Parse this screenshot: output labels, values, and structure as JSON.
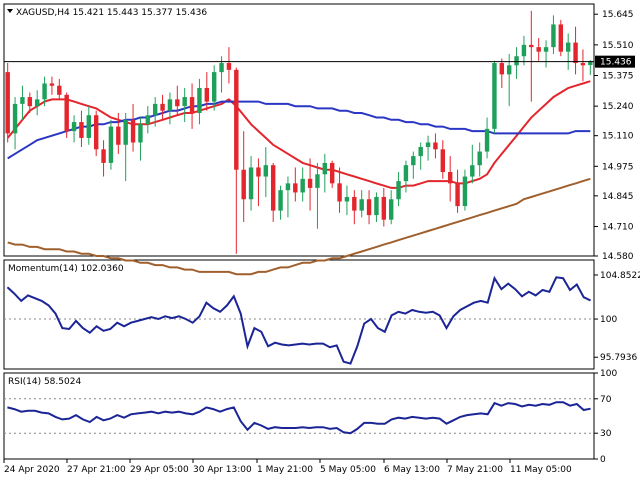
{
  "chart_data": [
    {
      "type": "candlestick",
      "title": "XAGUSD,H4  15.421 15.443 15.377 15.436",
      "symbol": "XAGUSD,H4",
      "ohlc_header": [
        "15.421",
        "15.443",
        "15.377",
        "15.436"
      ],
      "last_price_label": "15.436",
      "last_price": 15.436,
      "ylim": [
        14.58,
        15.69
      ],
      "y_ticks": [
        15.645,
        15.51,
        15.375,
        15.24,
        15.11,
        14.975,
        14.845,
        14.71,
        14.58
      ],
      "y_tick_labels": [
        "15.645",
        "15.510",
        "15.375",
        "15.240",
        "15.110",
        "14.975",
        "14.845",
        "14.710",
        "14.580"
      ],
      "bull_color": "#1fa05a",
      "bear_color": "#e3262d",
      "candles": [
        {
          "o": 15.39,
          "h": 15.43,
          "l": 15.08,
          "c": 15.12
        },
        {
          "o": 15.12,
          "h": 15.28,
          "l": 15.05,
          "c": 15.25
        },
        {
          "o": 15.25,
          "h": 15.33,
          "l": 15.18,
          "c": 15.28
        },
        {
          "o": 15.28,
          "h": 15.3,
          "l": 15.21,
          "c": 15.24
        },
        {
          "o": 15.24,
          "h": 15.31,
          "l": 15.2,
          "c": 15.27
        },
        {
          "o": 15.27,
          "h": 15.37,
          "l": 15.24,
          "c": 15.34
        },
        {
          "o": 15.34,
          "h": 15.37,
          "l": 15.29,
          "c": 15.33
        },
        {
          "o": 15.33,
          "h": 15.36,
          "l": 15.27,
          "c": 15.29
        },
        {
          "o": 15.29,
          "h": 15.3,
          "l": 15.1,
          "c": 15.13
        },
        {
          "o": 15.13,
          "h": 15.2,
          "l": 15.08,
          "c": 15.17
        },
        {
          "o": 15.17,
          "h": 15.22,
          "l": 15.06,
          "c": 15.1
        },
        {
          "o": 15.1,
          "h": 15.24,
          "l": 15.07,
          "c": 15.2
        },
        {
          "o": 15.2,
          "h": 15.22,
          "l": 15.02,
          "c": 15.05
        },
        {
          "o": 15.05,
          "h": 15.09,
          "l": 14.93,
          "c": 14.99
        },
        {
          "o": 14.99,
          "h": 15.18,
          "l": 14.96,
          "c": 15.15
        },
        {
          "o": 15.15,
          "h": 15.21,
          "l": 15.03,
          "c": 15.07
        },
        {
          "o": 15.07,
          "h": 15.21,
          "l": 14.91,
          "c": 15.18
        },
        {
          "o": 15.18,
          "h": 15.25,
          "l": 15.04,
          "c": 15.08
        },
        {
          "o": 15.08,
          "h": 15.19,
          "l": 15.0,
          "c": 15.16
        },
        {
          "o": 15.16,
          "h": 15.24,
          "l": 15.12,
          "c": 15.2
        },
        {
          "o": 15.2,
          "h": 15.28,
          "l": 15.15,
          "c": 15.25
        },
        {
          "o": 15.25,
          "h": 15.29,
          "l": 15.18,
          "c": 15.22
        },
        {
          "o": 15.22,
          "h": 15.3,
          "l": 15.16,
          "c": 15.27
        },
        {
          "o": 15.27,
          "h": 15.33,
          "l": 15.2,
          "c": 15.24
        },
        {
          "o": 15.24,
          "h": 15.32,
          "l": 15.17,
          "c": 15.28
        },
        {
          "o": 15.28,
          "h": 15.34,
          "l": 15.14,
          "c": 15.21
        },
        {
          "o": 15.21,
          "h": 15.36,
          "l": 15.16,
          "c": 15.32
        },
        {
          "o": 15.32,
          "h": 15.39,
          "l": 15.22,
          "c": 15.26
        },
        {
          "o": 15.26,
          "h": 15.42,
          "l": 15.22,
          "c": 15.39
        },
        {
          "o": 15.39,
          "h": 15.46,
          "l": 15.3,
          "c": 15.43
        },
        {
          "o": 15.43,
          "h": 15.5,
          "l": 15.34,
          "c": 15.4
        },
        {
          "o": 15.4,
          "h": 15.41,
          "l": 14.59,
          "c": 14.96
        },
        {
          "o": 14.96,
          "h": 15.13,
          "l": 14.73,
          "c": 14.83
        },
        {
          "o": 14.83,
          "h": 15.02,
          "l": 14.78,
          "c": 14.97
        },
        {
          "o": 14.97,
          "h": 15.01,
          "l": 14.8,
          "c": 14.93
        },
        {
          "o": 14.93,
          "h": 15.06,
          "l": 14.84,
          "c": 14.98
        },
        {
          "o": 14.98,
          "h": 14.99,
          "l": 14.73,
          "c": 14.78
        },
        {
          "o": 14.78,
          "h": 14.89,
          "l": 14.74,
          "c": 14.87
        },
        {
          "o": 14.87,
          "h": 14.93,
          "l": 14.75,
          "c": 14.9
        },
        {
          "o": 14.9,
          "h": 14.97,
          "l": 14.82,
          "c": 14.86
        },
        {
          "o": 14.86,
          "h": 14.97,
          "l": 14.82,
          "c": 14.92
        },
        {
          "o": 14.92,
          "h": 15.01,
          "l": 14.78,
          "c": 14.88
        },
        {
          "o": 14.88,
          "h": 14.99,
          "l": 14.7,
          "c": 14.94
        },
        {
          "o": 14.94,
          "h": 15.03,
          "l": 14.86,
          "c": 14.99
        },
        {
          "o": 14.99,
          "h": 15.0,
          "l": 14.88,
          "c": 14.9
        },
        {
          "o": 14.9,
          "h": 14.97,
          "l": 14.77,
          "c": 14.82
        },
        {
          "o": 14.82,
          "h": 14.89,
          "l": 14.76,
          "c": 14.84
        },
        {
          "o": 14.84,
          "h": 14.87,
          "l": 14.72,
          "c": 14.78
        },
        {
          "o": 14.78,
          "h": 14.87,
          "l": 14.75,
          "c": 14.83
        },
        {
          "o": 14.83,
          "h": 14.87,
          "l": 14.72,
          "c": 14.76
        },
        {
          "o": 14.76,
          "h": 14.86,
          "l": 14.73,
          "c": 14.84
        },
        {
          "o": 14.84,
          "h": 14.88,
          "l": 14.71,
          "c": 14.74
        },
        {
          "o": 14.74,
          "h": 14.87,
          "l": 14.72,
          "c": 14.83
        },
        {
          "o": 14.83,
          "h": 14.95,
          "l": 14.8,
          "c": 14.91
        },
        {
          "o": 14.91,
          "h": 15.0,
          "l": 14.86,
          "c": 14.98
        },
        {
          "o": 14.98,
          "h": 15.04,
          "l": 14.92,
          "c": 15.02
        },
        {
          "o": 15.02,
          "h": 15.08,
          "l": 14.96,
          "c": 15.06
        },
        {
          "o": 15.06,
          "h": 15.11,
          "l": 15.0,
          "c": 15.08
        },
        {
          "o": 15.08,
          "h": 15.12,
          "l": 15.01,
          "c": 15.05
        },
        {
          "o": 15.05,
          "h": 15.09,
          "l": 14.92,
          "c": 14.95
        },
        {
          "o": 14.95,
          "h": 15.02,
          "l": 14.82,
          "c": 14.9
        },
        {
          "o": 14.9,
          "h": 14.96,
          "l": 14.77,
          "c": 14.8
        },
        {
          "o": 14.8,
          "h": 14.96,
          "l": 14.78,
          "c": 14.93
        },
        {
          "o": 14.93,
          "h": 15.07,
          "l": 14.9,
          "c": 14.98
        },
        {
          "o": 14.98,
          "h": 15.08,
          "l": 14.93,
          "c": 15.04
        },
        {
          "o": 15.04,
          "h": 15.19,
          "l": 15.01,
          "c": 15.14
        },
        {
          "o": 15.14,
          "h": 15.44,
          "l": 15.12,
          "c": 15.43
        },
        {
          "o": 15.43,
          "h": 15.45,
          "l": 15.32,
          "c": 15.38
        },
        {
          "o": 15.38,
          "h": 15.47,
          "l": 15.24,
          "c": 15.42
        },
        {
          "o": 15.42,
          "h": 15.5,
          "l": 15.36,
          "c": 15.46
        },
        {
          "o": 15.46,
          "h": 15.55,
          "l": 15.42,
          "c": 15.51
        },
        {
          "o": 15.51,
          "h": 15.66,
          "l": 15.26,
          "c": 15.5
        },
        {
          "o": 15.5,
          "h": 15.54,
          "l": 15.44,
          "c": 15.48
        },
        {
          "o": 15.48,
          "h": 15.53,
          "l": 15.41,
          "c": 15.5
        },
        {
          "o": 15.5,
          "h": 15.64,
          "l": 15.47,
          "c": 15.6
        },
        {
          "o": 15.6,
          "h": 15.62,
          "l": 15.46,
          "c": 15.48
        },
        {
          "o": 15.48,
          "h": 15.56,
          "l": 15.4,
          "c": 15.52
        },
        {
          "o": 15.52,
          "h": 15.59,
          "l": 15.38,
          "c": 15.43
        },
        {
          "o": 15.43,
          "h": 15.49,
          "l": 15.35,
          "c": 15.42
        },
        {
          "o": 15.421,
          "h": 15.443,
          "l": 15.377,
          "c": 15.436
        }
      ],
      "moving_averages": [
        {
          "color": "#e3262d",
          "values": [
            15.1,
            15.14,
            15.18,
            15.22,
            15.24,
            15.26,
            15.27,
            15.27,
            15.27,
            15.26,
            15.25,
            15.24,
            15.23,
            15.21,
            15.19,
            15.18,
            15.17,
            15.16,
            15.16,
            15.16,
            15.17,
            15.18,
            15.19,
            15.2,
            15.21,
            15.21,
            15.22,
            15.23,
            15.24,
            15.25,
            15.27,
            15.24,
            15.2,
            15.16,
            15.13,
            15.1,
            15.07,
            15.05,
            15.03,
            15.01,
            14.99,
            14.98,
            14.97,
            14.96,
            14.96,
            14.95,
            14.94,
            14.93,
            14.92,
            14.91,
            14.9,
            14.89,
            14.88,
            14.88,
            14.89,
            14.89,
            14.9,
            14.91,
            14.91,
            14.91,
            14.91,
            14.9,
            14.9,
            14.91,
            14.92,
            14.94,
            14.99,
            15.03,
            15.07,
            15.11,
            15.15,
            15.19,
            15.22,
            15.25,
            15.28,
            15.3,
            15.32,
            15.33,
            15.34,
            15.35
          ]
        },
        {
          "color": "#2a37c4",
          "values": [
            15.01,
            15.03,
            15.05,
            15.07,
            15.09,
            15.1,
            15.11,
            15.12,
            15.13,
            15.14,
            15.15,
            15.15,
            15.16,
            15.16,
            15.17,
            15.17,
            15.18,
            15.18,
            15.19,
            15.19,
            15.2,
            15.21,
            15.22,
            15.22,
            15.23,
            15.24,
            15.24,
            15.25,
            15.25,
            15.26,
            15.26,
            15.26,
            15.26,
            15.26,
            15.26,
            15.25,
            15.25,
            15.25,
            15.25,
            15.24,
            15.24,
            15.24,
            15.23,
            15.23,
            15.23,
            15.22,
            15.22,
            15.21,
            15.21,
            15.2,
            15.19,
            15.19,
            15.18,
            15.18,
            15.17,
            15.17,
            15.16,
            15.16,
            15.15,
            15.15,
            15.14,
            15.14,
            15.14,
            15.13,
            15.13,
            15.13,
            15.12,
            15.12,
            15.12,
            15.12,
            15.12,
            15.12,
            15.12,
            15.12,
            15.12,
            15.12,
            15.12,
            15.13,
            15.13,
            15.13
          ]
        },
        {
          "color": "#a0602e",
          "values": [
            14.64,
            14.63,
            14.63,
            14.62,
            14.62,
            14.61,
            14.61,
            14.61,
            14.6,
            14.6,
            14.59,
            14.59,
            14.58,
            14.58,
            14.57,
            14.57,
            14.56,
            14.56,
            14.55,
            14.55,
            14.54,
            14.54,
            14.53,
            14.53,
            14.52,
            14.52,
            14.51,
            14.51,
            14.51,
            14.51,
            14.51,
            14.5,
            14.5,
            14.5,
            14.51,
            14.51,
            14.52,
            14.53,
            14.53,
            14.54,
            14.55,
            14.55,
            14.56,
            14.56,
            14.57,
            14.57,
            14.58,
            14.59,
            14.6,
            14.61,
            14.62,
            14.63,
            14.64,
            14.65,
            14.66,
            14.67,
            14.68,
            14.69,
            14.7,
            14.71,
            14.72,
            14.73,
            14.74,
            14.75,
            14.76,
            14.77,
            14.78,
            14.79,
            14.8,
            14.81,
            14.83,
            14.84,
            14.85,
            14.86,
            14.87,
            14.88,
            14.89,
            14.9,
            14.91,
            14.92
          ]
        }
      ]
    },
    {
      "type": "line",
      "title": "Momentum(14) 102.0360",
      "ylim": [
        94.5,
        106.5
      ],
      "y_ticks": [
        104.8522,
        100,
        95.7936
      ],
      "y_tick_labels": [
        "104.8522",
        "100",
        "95.7936"
      ],
      "baseline": 100,
      "series": [
        {
          "color": "#1b2596",
          "values": [
            103.5,
            102.8,
            102.0,
            102.6,
            102.3,
            102.0,
            101.5,
            100.6,
            99.0,
            98.9,
            99.8,
            99.0,
            98.5,
            99.2,
            98.7,
            98.9,
            99.6,
            99.2,
            99.6,
            99.8,
            100.0,
            100.2,
            100.0,
            100.3,
            100.1,
            100.3,
            100.0,
            99.6,
            100.3,
            101.8,
            101.2,
            100.8,
            101.5,
            102.5,
            100.6,
            97.0,
            99.0,
            98.6,
            97.0,
            97.4,
            97.2,
            97.1,
            97.2,
            97.3,
            97.2,
            97.3,
            97.3,
            96.9,
            97.1,
            95.3,
            95.1,
            97.0,
            99.5,
            100.0,
            99.0,
            98.6,
            100.4,
            100.8,
            100.6,
            101.0,
            100.8,
            100.7,
            100.8,
            100.4,
            99.0,
            100.3,
            101.0,
            101.4,
            101.8,
            102.0,
            101.8,
            104.5,
            103.3,
            103.9,
            103.3,
            102.5,
            103.0,
            102.6,
            103.2,
            103.0,
            104.6,
            104.5,
            103.2,
            103.8,
            102.4,
            102.036
          ]
        }
      ]
    },
    {
      "type": "line",
      "title": "RSI(14) 58.5024",
      "ylim": [
        0,
        100
      ],
      "y_ticks": [
        100,
        70,
        30,
        0
      ],
      "y_tick_labels": [
        "100",
        "70",
        "30",
        "0"
      ],
      "levels": [
        70,
        30
      ],
      "series": [
        {
          "color": "#1b2596",
          "values": [
            60,
            58,
            55,
            56,
            56,
            54,
            53,
            49,
            46,
            47,
            51,
            46,
            43,
            49,
            45,
            47,
            51,
            48,
            52,
            53,
            54,
            55,
            53,
            55,
            54,
            55,
            53,
            52,
            55,
            60,
            58,
            55,
            58,
            60,
            44,
            34,
            42,
            39,
            35,
            37,
            36,
            36,
            36,
            37,
            36,
            37,
            37,
            35,
            36,
            31,
            30,
            35,
            42,
            42,
            41,
            41,
            46,
            48,
            47,
            49,
            48,
            47,
            48,
            47,
            41,
            45,
            49,
            51,
            52,
            53,
            52,
            65,
            62,
            65,
            64,
            61,
            63,
            62,
            64,
            63,
            66,
            66,
            62,
            64,
            57,
            58.5
          ]
        }
      ]
    }
  ],
  "x_axis": {
    "labels": [
      "24 Apr 2020",
      "27 Apr 21:00",
      "29 Apr 05:00",
      "30 Apr 13:00",
      "1 May 21:00",
      "5 May 05:00",
      "6 May 13:00",
      "7 May 21:00",
      "11 May 05:00"
    ]
  }
}
